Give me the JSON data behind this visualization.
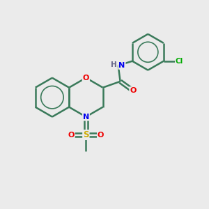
{
  "background_color": "#ebebeb",
  "atom_colors": {
    "C": "#3a7a5a",
    "N": "#0000ee",
    "O": "#ee0000",
    "S": "#ccaa00",
    "Cl": "#00aa00",
    "H": "#666688"
  },
  "bond_color": "#3a7a5a",
  "bond_lw": 1.8,
  "figsize": [
    3.0,
    3.0
  ],
  "dpi": 100
}
